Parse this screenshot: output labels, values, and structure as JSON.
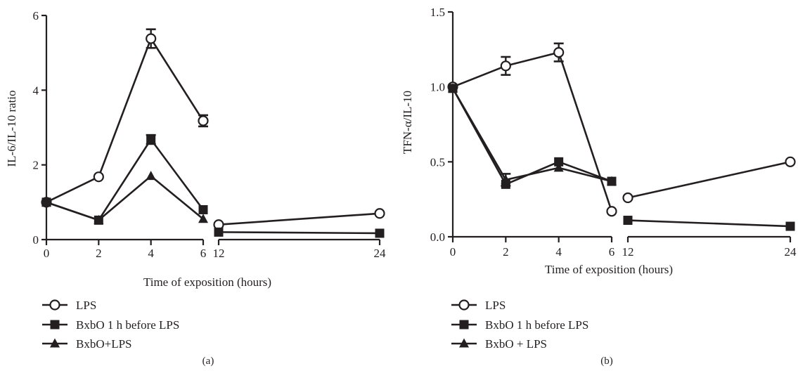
{
  "chart_data": [
    {
      "type": "line",
      "panel_label": "(a)",
      "xlabel": "Time of exposition (hours)",
      "ylabel": "IL-6/IL-10 ratio",
      "ylim": [
        0,
        6
      ],
      "yticks": [
        "0",
        "2",
        "4",
        "6"
      ],
      "xticks": [
        "0",
        "2",
        "4",
        "6",
        "12",
        "24"
      ],
      "x_segments": [
        {
          "range": [
            0,
            6
          ]
        },
        {
          "range": [
            12,
            24
          ]
        }
      ],
      "series": [
        {
          "name": "LPS",
          "marker": "open-circle",
          "x": [
            0,
            2,
            4,
            6,
            12,
            24
          ],
          "y": [
            1.0,
            1.68,
            5.38,
            3.18,
            0.4,
            0.7
          ],
          "err": [
            0,
            0,
            0.25,
            0.15,
            0,
            0
          ]
        },
        {
          "name": "BxbO 1 h before LPS",
          "marker": "square",
          "x": [
            0,
            2,
            4,
            6,
            12,
            24
          ],
          "y": [
            1.0,
            0.52,
            2.68,
            0.8,
            0.2,
            0.17
          ],
          "err": [
            0,
            0,
            0.12,
            0,
            0,
            0
          ]
        },
        {
          "name": "BxbO+LPS",
          "marker": "triangle",
          "x": [
            0,
            2,
            4,
            6
          ],
          "y": [
            1.0,
            0.52,
            1.7,
            0.55
          ],
          "err": [
            0,
            0,
            0,
            0
          ]
        }
      ]
    },
    {
      "type": "line",
      "panel_label": "(b)",
      "xlabel": "Time of exposition (hours)",
      "ylabel": "TFN-α/IL-10",
      "ylim": [
        0,
        1.5
      ],
      "yticks": [
        "0.0",
        "0.5",
        "1.0",
        "1.5"
      ],
      "xticks": [
        "0",
        "2",
        "4",
        "6",
        "12",
        "24"
      ],
      "x_segments": [
        {
          "range": [
            0,
            6
          ]
        },
        {
          "range": [
            12,
            24
          ]
        }
      ],
      "series": [
        {
          "name": "LPS",
          "marker": "open-circle",
          "x": [
            0,
            2,
            4,
            6,
            12,
            24
          ],
          "y": [
            1.0,
            1.14,
            1.23,
            0.17,
            0.26,
            0.5
          ],
          "err": [
            0,
            0.06,
            0.06,
            0,
            0,
            0
          ]
        },
        {
          "name": "BxbO 1 h before LPS",
          "marker": "square",
          "x": [
            0,
            2,
            4,
            6,
            12,
            24
          ],
          "y": [
            0.99,
            0.35,
            0.5,
            0.37,
            0.11,
            0.07
          ],
          "err": [
            0,
            0,
            0,
            0,
            0,
            0
          ]
        },
        {
          "name": "BxbO + LPS",
          "marker": "triangle",
          "x": [
            0,
            2,
            4,
            6
          ],
          "y": [
            0.99,
            0.38,
            0.46,
            0.37
          ],
          "err": [
            0,
            0.04,
            0,
            0
          ]
        }
      ]
    }
  ]
}
